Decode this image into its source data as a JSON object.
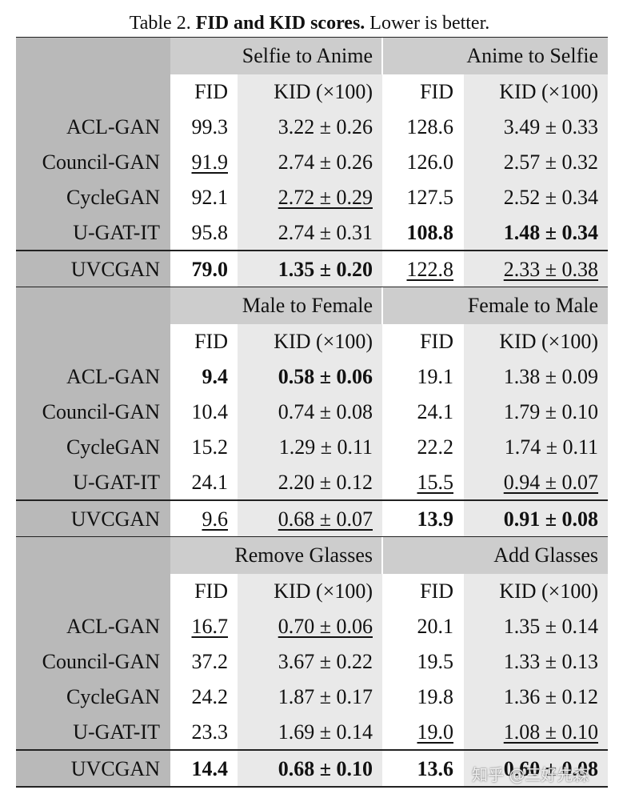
{
  "caption": {
    "label": "Table 2.",
    "title": "FID and KID scores.",
    "note": "Lower is better."
  },
  "sections": [
    {
      "tasks": [
        "Selfie to Anime",
        "Anime to Selfie"
      ],
      "columns": [
        "FID",
        "KID (×100)",
        "FID",
        "KID (×100)"
      ],
      "rows": [
        {
          "method": "ACL-GAN",
          "cells": [
            "99.3",
            "3.22 ± 0.26",
            "128.6",
            "3.49 ± 0.33"
          ]
        },
        {
          "method": "Council-GAN",
          "cells": [
            "91.9",
            "2.74 ± 0.26",
            "126.0",
            "2.57 ± 0.32"
          ]
        },
        {
          "method": "CycleGAN",
          "cells": [
            "92.1",
            "2.72 ± 0.29",
            "127.5",
            "2.52 ± 0.34"
          ]
        },
        {
          "method": "U-GAT-IT",
          "cells": [
            "95.8",
            "2.74 ± 0.31",
            "108.8",
            "1.48 ± 0.34"
          ]
        },
        {
          "method": "UVCGAN",
          "cells": [
            "79.0",
            "1.35 ± 0.20",
            "122.8",
            "2.33 ± 0.38"
          ]
        }
      ],
      "bold": [
        [
          3,
          2
        ],
        [
          3,
          3
        ],
        [
          4,
          0
        ],
        [
          4,
          1
        ]
      ],
      "underline": [
        [
          1,
          0
        ],
        [
          2,
          1
        ],
        [
          4,
          2
        ],
        [
          4,
          3
        ]
      ]
    },
    {
      "tasks": [
        "Male to Female",
        "Female to Male"
      ],
      "columns": [
        "FID",
        "KID (×100)",
        "FID",
        "KID (×100)"
      ],
      "rows": [
        {
          "method": "ACL-GAN",
          "cells": [
            "9.4",
            "0.58 ± 0.06",
            "19.1",
            "1.38 ± 0.09"
          ]
        },
        {
          "method": "Council-GAN",
          "cells": [
            "10.4",
            "0.74 ± 0.08",
            "24.1",
            "1.79 ± 0.10"
          ]
        },
        {
          "method": "CycleGAN",
          "cells": [
            "15.2",
            "1.29 ± 0.11",
            "22.2",
            "1.74 ± 0.11"
          ]
        },
        {
          "method": "U-GAT-IT",
          "cells": [
            "24.1",
            "2.20 ± 0.12",
            "15.5",
            "0.94 ± 0.07"
          ]
        },
        {
          "method": "UVCGAN",
          "cells": [
            "9.6",
            "0.68 ± 0.07",
            "13.9",
            "0.91 ± 0.08"
          ]
        }
      ],
      "bold": [
        [
          0,
          0
        ],
        [
          0,
          1
        ],
        [
          4,
          2
        ],
        [
          4,
          3
        ]
      ],
      "underline": [
        [
          3,
          2
        ],
        [
          3,
          3
        ],
        [
          4,
          0
        ],
        [
          4,
          1
        ]
      ]
    },
    {
      "tasks": [
        "Remove Glasses",
        "Add Glasses"
      ],
      "columns": [
        "FID",
        "KID (×100)",
        "FID",
        "KID (×100)"
      ],
      "rows": [
        {
          "method": "ACL-GAN",
          "cells": [
            "16.7",
            "0.70 ± 0.06",
            "20.1",
            "1.35 ± 0.14"
          ]
        },
        {
          "method": "Council-GAN",
          "cells": [
            "37.2",
            "3.67 ± 0.22",
            "19.5",
            "1.33 ± 0.13"
          ]
        },
        {
          "method": "CycleGAN",
          "cells": [
            "24.2",
            "1.87 ± 0.17",
            "19.8",
            "1.36 ± 0.12"
          ]
        },
        {
          "method": "U-GAT-IT",
          "cells": [
            "23.3",
            "1.69 ± 0.14",
            "19.0",
            "1.08 ± 0.10"
          ]
        },
        {
          "method": "UVCGAN",
          "cells": [
            "14.4",
            "0.68 ± 0.10",
            "13.6",
            "0.60 ± 0.08"
          ]
        }
      ],
      "bold": [
        [
          4,
          0
        ],
        [
          4,
          1
        ],
        [
          4,
          2
        ],
        [
          4,
          3
        ]
      ],
      "underline": [
        [
          0,
          0
        ],
        [
          0,
          1
        ],
        [
          3,
          2
        ],
        [
          3,
          3
        ]
      ]
    }
  ],
  "watermark": "知乎 @三好先森"
}
